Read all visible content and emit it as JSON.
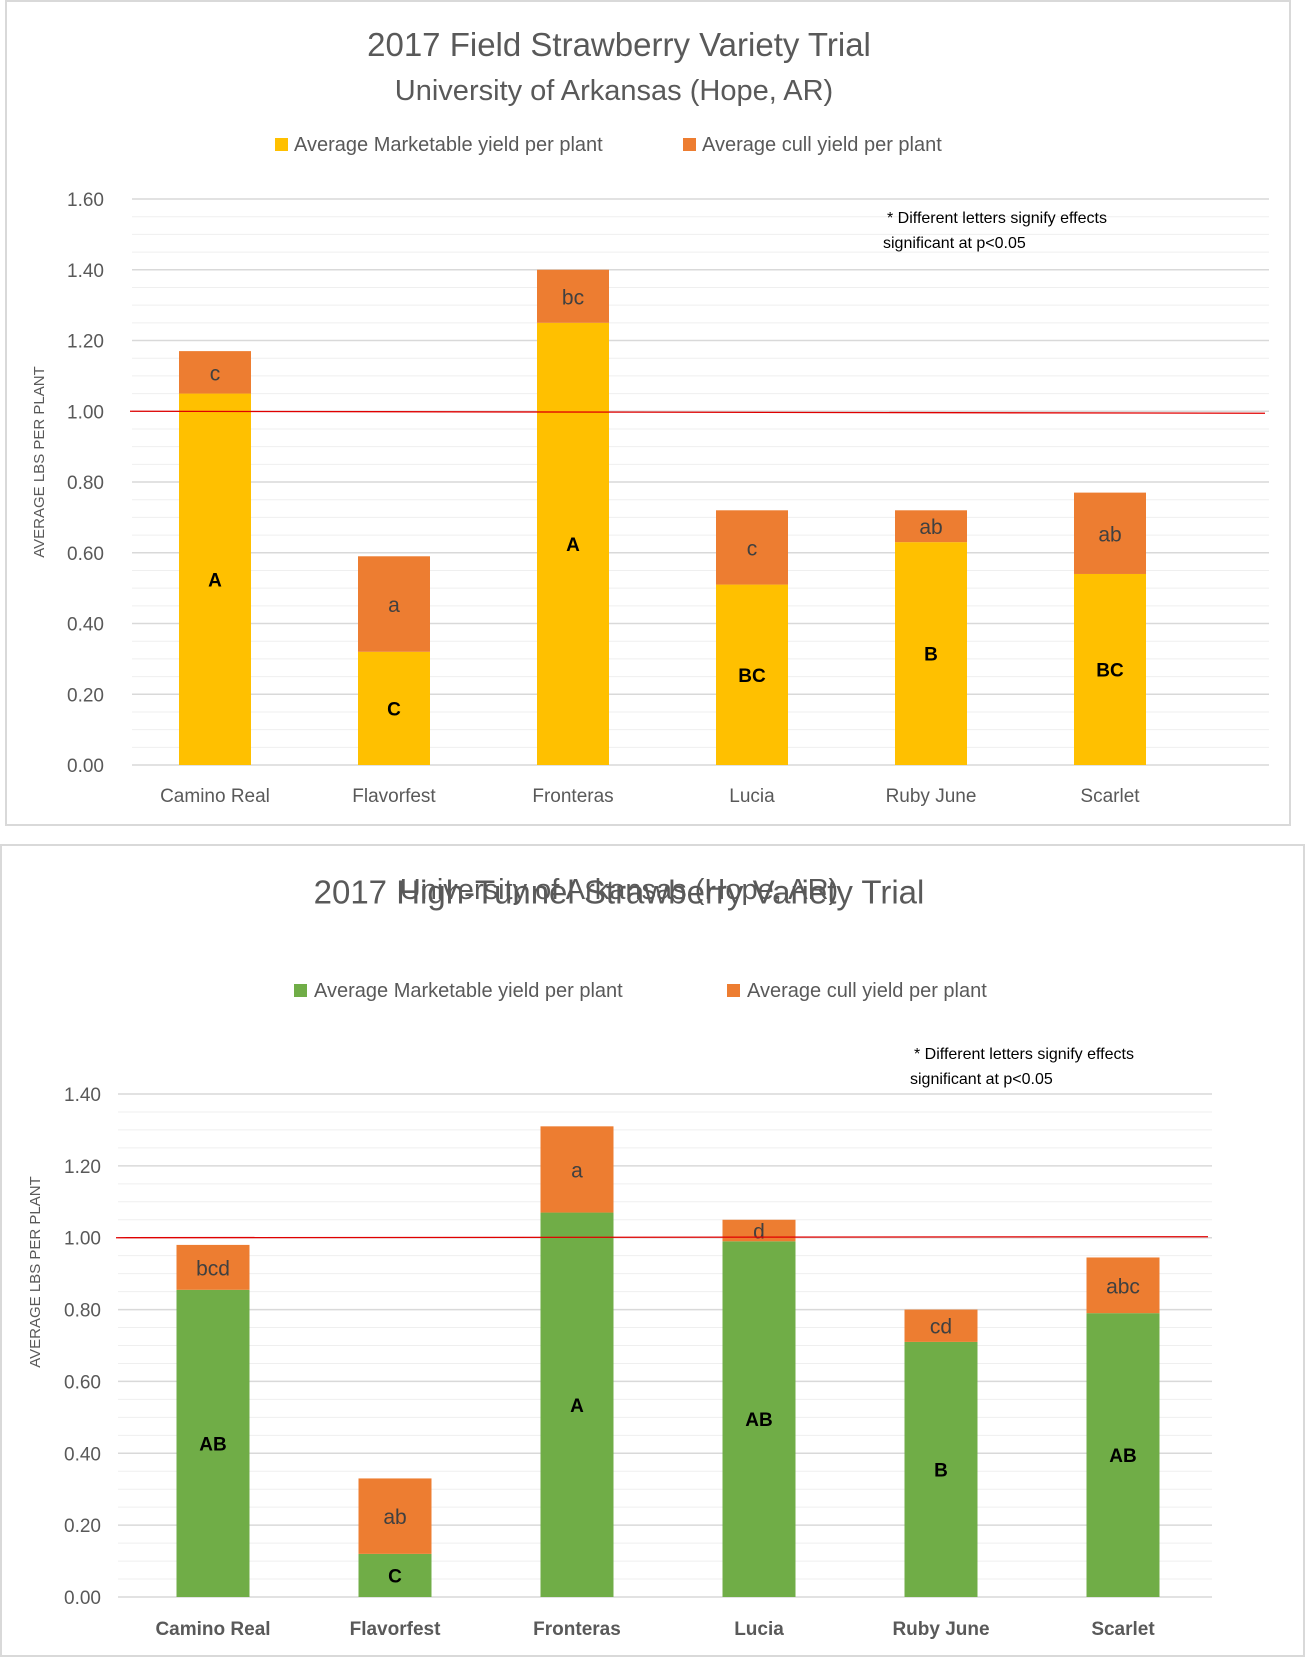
{
  "chart_data": [
    {
      "type": "bar",
      "stacked": true,
      "title": "2017 Field Strawberry Variety Trial",
      "subtitle": "University of Arkansas  (Hope, AR)",
      "xlabel": "",
      "ylabel": "AVERAGE LBS PER PLANT",
      "ylim": [
        0,
        1.6
      ],
      "yticks": [
        "0.00",
        "0.20",
        "0.40",
        "0.60",
        "0.80",
        "1.00",
        "1.20",
        "1.40",
        "1.60"
      ],
      "ytick_values": [
        0,
        0.2,
        0.4,
        0.6,
        0.8,
        1.0,
        1.2,
        1.4,
        1.6
      ],
      "minor_grid_step": 0.05,
      "grid": true,
      "legend_position": "top",
      "categories": [
        "Camino Real",
        "Flavorfest",
        "Fronteras",
        "Lucia",
        "Ruby June",
        "Scarlet"
      ],
      "category_labels_bold": false,
      "series": [
        {
          "name": "Average Marketable yield per plant",
          "color": "#ffc000",
          "values": [
            1.05,
            0.32,
            1.25,
            0.51,
            0.63,
            0.54
          ],
          "labels": [
            "A",
            "C",
            "A",
            "BC",
            "B",
            "BC"
          ]
        },
        {
          "name": "Average cull yield per plant",
          "color": "#ed7d31",
          "values": [
            0.12,
            0.27,
            0.15,
            0.21,
            0.09,
            0.23
          ],
          "labels": [
            "c",
            "a",
            "bc",
            "c",
            "ab",
            "ab"
          ]
        }
      ],
      "reference_line": {
        "value": 1.0,
        "color": "#e00000"
      },
      "annotation": [
        "* Different letters signify effects",
        "significant at p<0.05"
      ]
    },
    {
      "type": "bar",
      "stacked": true,
      "title": "2017 High-Tunnel Strawberry Variety Trial",
      "subtitle": "University of Arkansas  (Hope, AR)",
      "xlabel": "",
      "ylabel": "AVERAGE LBS PER PLANT",
      "ylim": [
        0,
        1.4
      ],
      "yticks": [
        "0.00",
        "0.20",
        "0.40",
        "0.60",
        "0.80",
        "1.00",
        "1.20",
        "1.40"
      ],
      "ytick_values": [
        0,
        0.2,
        0.4,
        0.6,
        0.8,
        1.0,
        1.2,
        1.4
      ],
      "minor_grid_step": 0.05,
      "grid": true,
      "legend_position": "top",
      "categories": [
        "Camino Real",
        "Flavorfest",
        "Fronteras",
        "Lucia",
        "Ruby June",
        "Scarlet"
      ],
      "category_labels_bold": true,
      "series": [
        {
          "name": "Average Marketable yield per plant",
          "color": "#70ad47",
          "values": [
            0.855,
            0.12,
            1.07,
            0.99,
            0.71,
            0.79
          ],
          "labels": [
            "AB",
            "C",
            "A",
            "AB",
            "B",
            "AB"
          ]
        },
        {
          "name": "Average cull yield per plant",
          "color": "#ed7d31",
          "values": [
            0.125,
            0.21,
            0.24,
            0.06,
            0.09,
            0.155
          ],
          "labels": [
            "bcd",
            "ab",
            "a",
            "d",
            "cd",
            "abc"
          ]
        }
      ],
      "reference_line": {
        "value": 1.0,
        "color": "#e00000"
      },
      "annotation": [
        "* Different letters signify effects",
        "significant at p<0.05"
      ]
    }
  ]
}
